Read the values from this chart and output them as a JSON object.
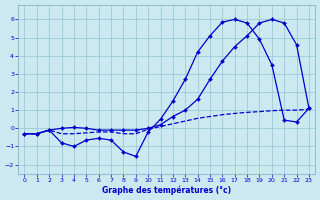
{
  "title": "Graphe des températures (°c)",
  "background_color": "#cce8f0",
  "grid_color": "#99ccd9",
  "line_color": "#0000cc",
  "xlim": [
    -0.5,
    23.5
  ],
  "ylim": [
    -2.5,
    6.8
  ],
  "xticks": [
    0,
    1,
    2,
    3,
    4,
    5,
    6,
    7,
    8,
    9,
    10,
    11,
    12,
    13,
    14,
    15,
    16,
    17,
    18,
    19,
    20,
    21,
    22,
    23
  ],
  "yticks": [
    -2,
    -1,
    0,
    1,
    2,
    3,
    4,
    5,
    6
  ],
  "line1_x": [
    0,
    1,
    2,
    3,
    4,
    5,
    6,
    7,
    8,
    9,
    10,
    11,
    12,
    13,
    14,
    15,
    16,
    17,
    18,
    19,
    20,
    21,
    22,
    23
  ],
  "line1_y": [
    -0.3,
    -0.3,
    -0.1,
    -0.3,
    -0.3,
    -0.25,
    -0.2,
    -0.2,
    -0.3,
    -0.3,
    -0.05,
    0.1,
    0.25,
    0.4,
    0.55,
    0.65,
    0.75,
    0.82,
    0.88,
    0.92,
    0.97,
    1.0,
    1.0,
    1.05
  ],
  "line2_x": [
    0,
    1,
    2,
    3,
    4,
    5,
    6,
    7,
    8,
    9,
    10,
    11,
    12,
    13,
    14,
    15,
    16,
    17,
    18,
    19,
    20,
    21,
    22,
    23
  ],
  "line2_y": [
    -0.3,
    -0.3,
    -0.1,
    -0.8,
    -1.0,
    -0.65,
    -0.55,
    -0.65,
    -1.3,
    -1.55,
    -0.2,
    0.5,
    1.5,
    2.7,
    4.2,
    5.1,
    5.85,
    6.0,
    5.8,
    4.9,
    3.5,
    0.45,
    0.35,
    1.1
  ],
  "line3_x": [
    0,
    1,
    2,
    3,
    4,
    5,
    6,
    7,
    8,
    9,
    10,
    11,
    12,
    13,
    14,
    15,
    16,
    17,
    18,
    19,
    20,
    21,
    22,
    23
  ],
  "line3_y": [
    -0.3,
    -0.3,
    -0.1,
    0.0,
    0.05,
    0.0,
    -0.1,
    -0.1,
    -0.1,
    -0.1,
    0.0,
    0.2,
    0.65,
    1.0,
    1.6,
    2.7,
    3.7,
    4.5,
    5.1,
    5.8,
    6.0,
    5.8,
    4.6,
    1.1
  ]
}
